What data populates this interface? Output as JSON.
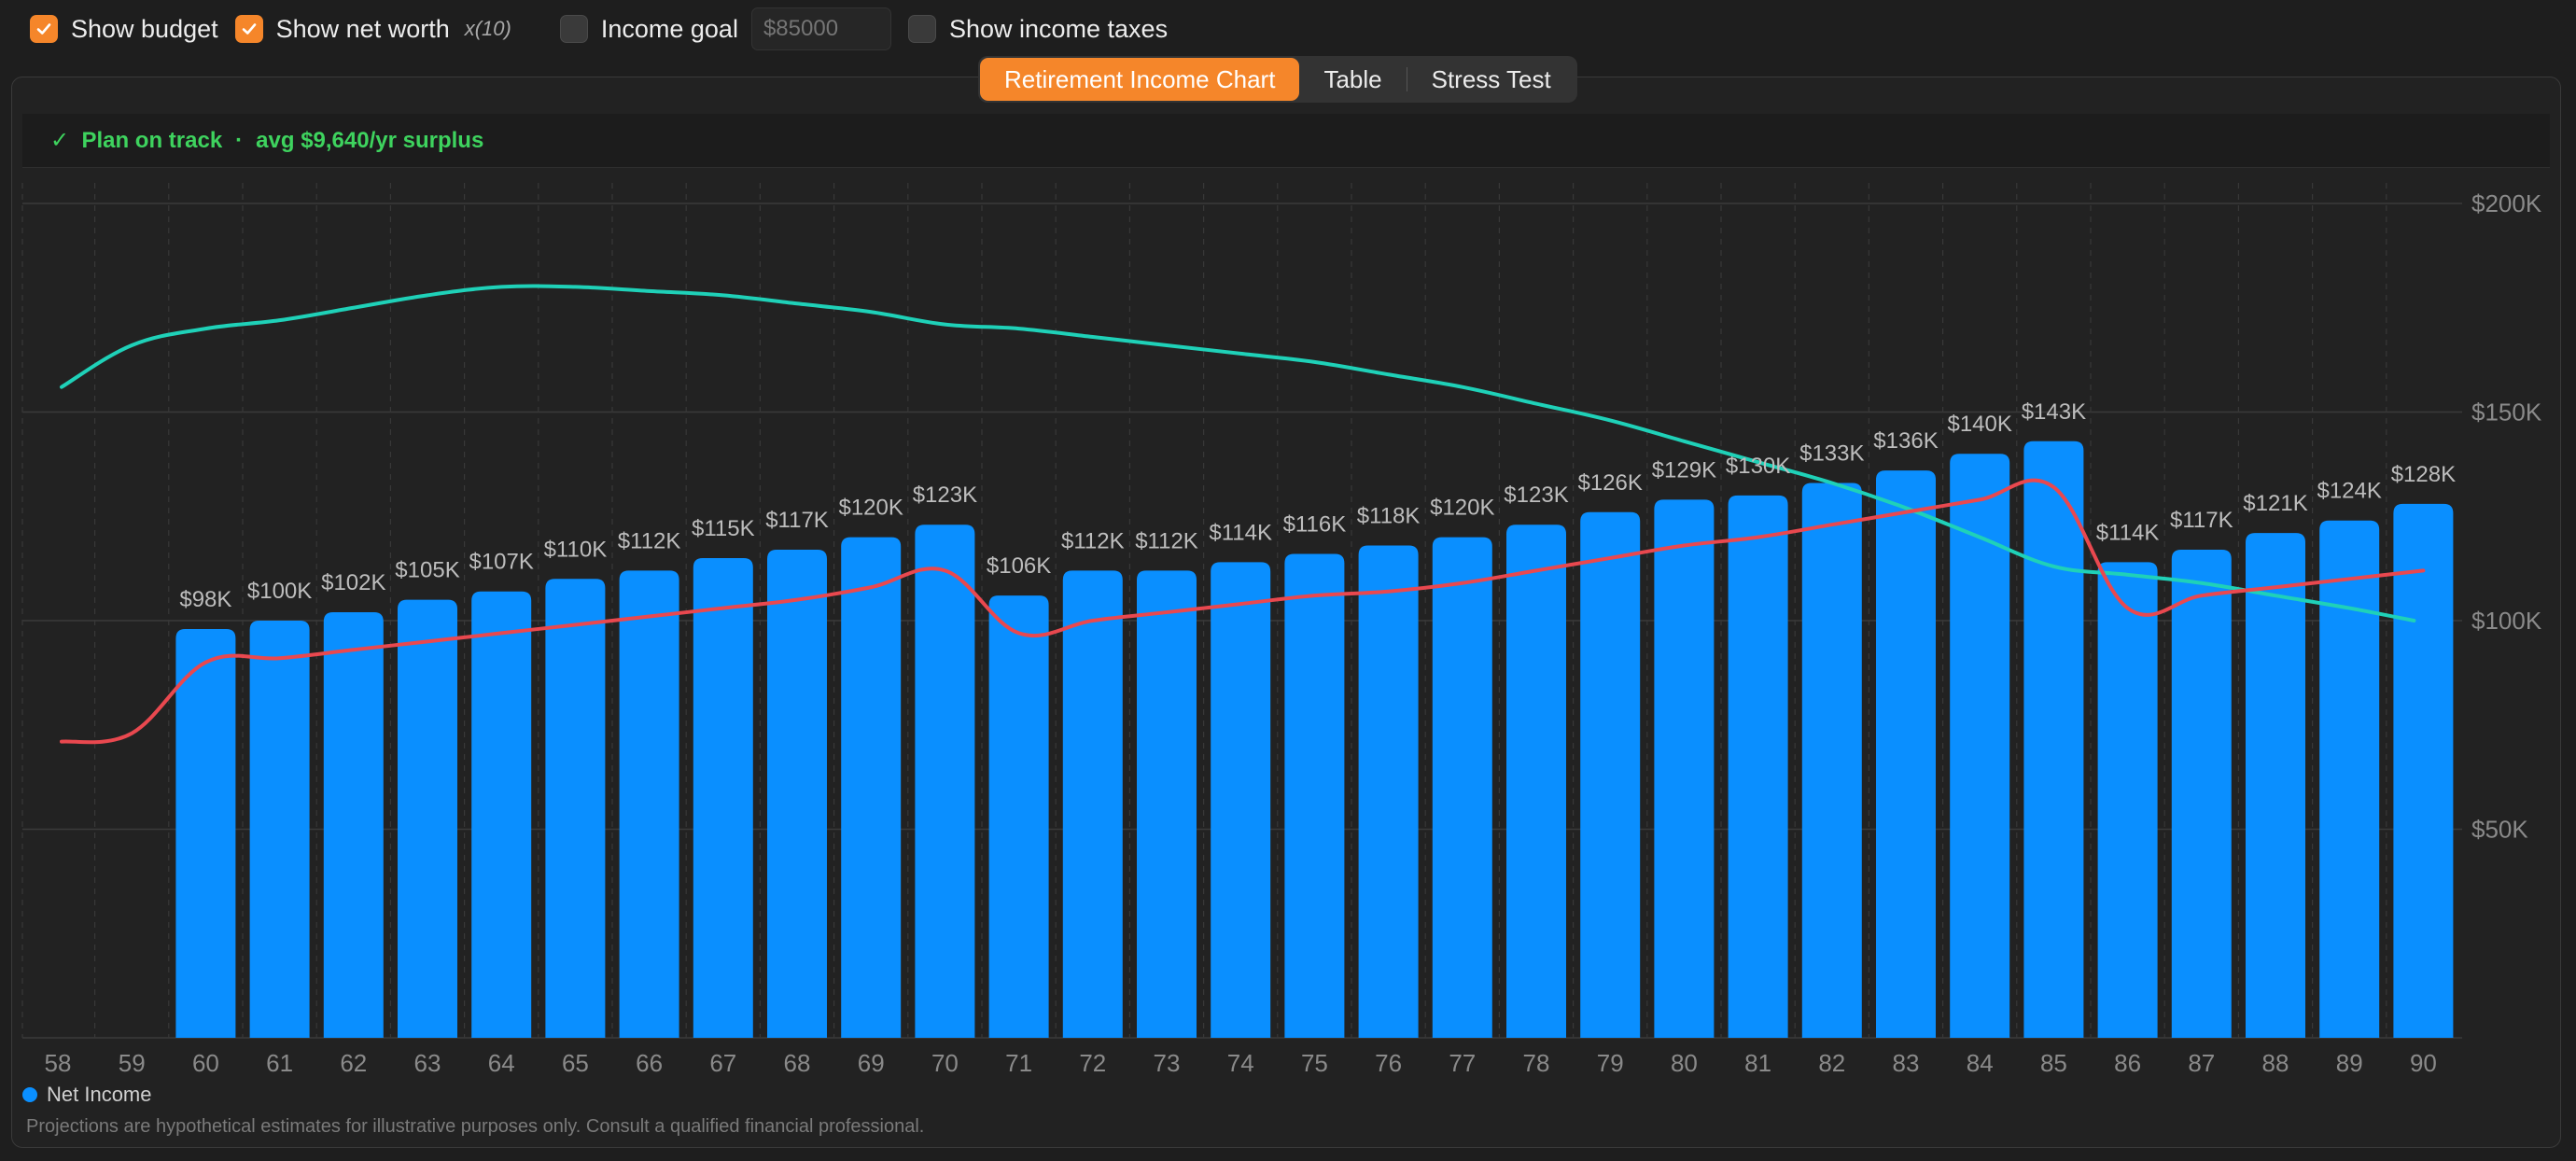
{
  "toolbar": {
    "show_budget": {
      "label": "Show budget",
      "checked": true
    },
    "show_net_worth": {
      "label": "Show net worth",
      "checked": true
    },
    "multiplier": "x(10)",
    "income_goal": {
      "label": "Income goal",
      "checked": false,
      "placeholder": "$85000"
    },
    "show_income_taxes": {
      "label": "Show income taxes",
      "checked": false
    }
  },
  "tabs": [
    {
      "label": "Retirement Income Chart",
      "active": true
    },
    {
      "label": "Table",
      "active": false
    },
    {
      "label": "Stress Test",
      "active": false
    }
  ],
  "status": {
    "check": "✓",
    "text": "Plan on track",
    "separator": "·",
    "detail": "avg $9,640/yr surplus"
  },
  "colors": {
    "accent": "#f5862a",
    "bar": "#0a8fff",
    "net_worth_line": "#1fd1b8",
    "budget_line": "#e9484f",
    "status_ok": "#3ed35e"
  },
  "chart_data": {
    "type": "bar",
    "categories": [
      "58",
      "59",
      "60",
      "61",
      "62",
      "63",
      "64",
      "65",
      "66",
      "67",
      "68",
      "69",
      "70",
      "71",
      "72",
      "73",
      "74",
      "75",
      "76",
      "77",
      "78",
      "79",
      "80",
      "81",
      "82",
      "83",
      "84",
      "85",
      "86",
      "87",
      "88",
      "89",
      "90"
    ],
    "series": [
      {
        "name": "Net Income",
        "type": "bar",
        "values": [
          null,
          null,
          98,
          100,
          102,
          105,
          107,
          110,
          112,
          115,
          117,
          120,
          123,
          106,
          112,
          112,
          114,
          116,
          118,
          120,
          123,
          126,
          129,
          130,
          133,
          136,
          140,
          143,
          114,
          117,
          121,
          124,
          128
        ],
        "labels": [
          "",
          "",
          "$98K",
          "$100K",
          "$102K",
          "$105K",
          "$107K",
          "$110K",
          "$112K",
          "$115K",
          "$117K",
          "$120K",
          "$123K",
          "$106K",
          "$112K",
          "$112K",
          "$114K",
          "$116K",
          "$118K",
          "$120K",
          "$123K",
          "$126K",
          "$129K",
          "$130K",
          "$133K",
          "$136K",
          "$140K",
          "$143K",
          "$114K",
          "$117K",
          "$121K",
          "$124K",
          "$128K"
        ]
      },
      {
        "type": "line",
        "values": [
          156,
          166,
          170,
          172,
          175,
          178,
          180,
          180,
          179,
          178,
          176,
          174,
          171,
          170,
          168,
          166,
          164,
          162,
          159,
          156,
          152,
          148,
          143,
          138,
          133,
          127,
          120,
          113,
          111,
          109,
          106,
          103,
          100
        ]
      },
      {
        "type": "line",
        "values": [
          71,
          73,
          90,
          91,
          93,
          95,
          97,
          99,
          101,
          103,
          105,
          108,
          112,
          97,
          100,
          102,
          104,
          106,
          107,
          109,
          112,
          115,
          118,
          120,
          123,
          126,
          129,
          132,
          103,
          106,
          108,
          110,
          112
        ]
      }
    ],
    "y_axis": {
      "ticks": [
        50,
        100,
        150,
        200
      ],
      "tick_labels": [
        "$50K",
        "$100K",
        "$150K",
        "$200K"
      ],
      "ylim": [
        0,
        200
      ],
      "position": "right"
    },
    "grid": true,
    "legend": {
      "position": "bottom-left",
      "entries": [
        "Net Income"
      ]
    }
  },
  "legend_label": "Net Income",
  "disclaimer": "Projections are hypothetical estimates for illustrative purposes only. Consult a qualified financial professional."
}
